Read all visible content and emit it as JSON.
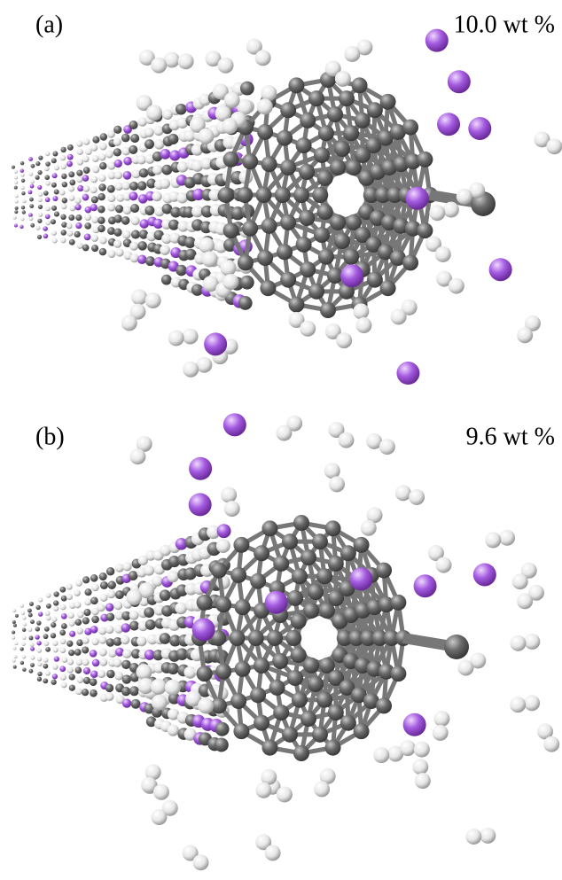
{
  "panels": [
    {
      "label": "(a)",
      "loading": "10.0 wt %"
    },
    {
      "label": "(b)",
      "loading": "9.6 wt %"
    }
  ]
}
